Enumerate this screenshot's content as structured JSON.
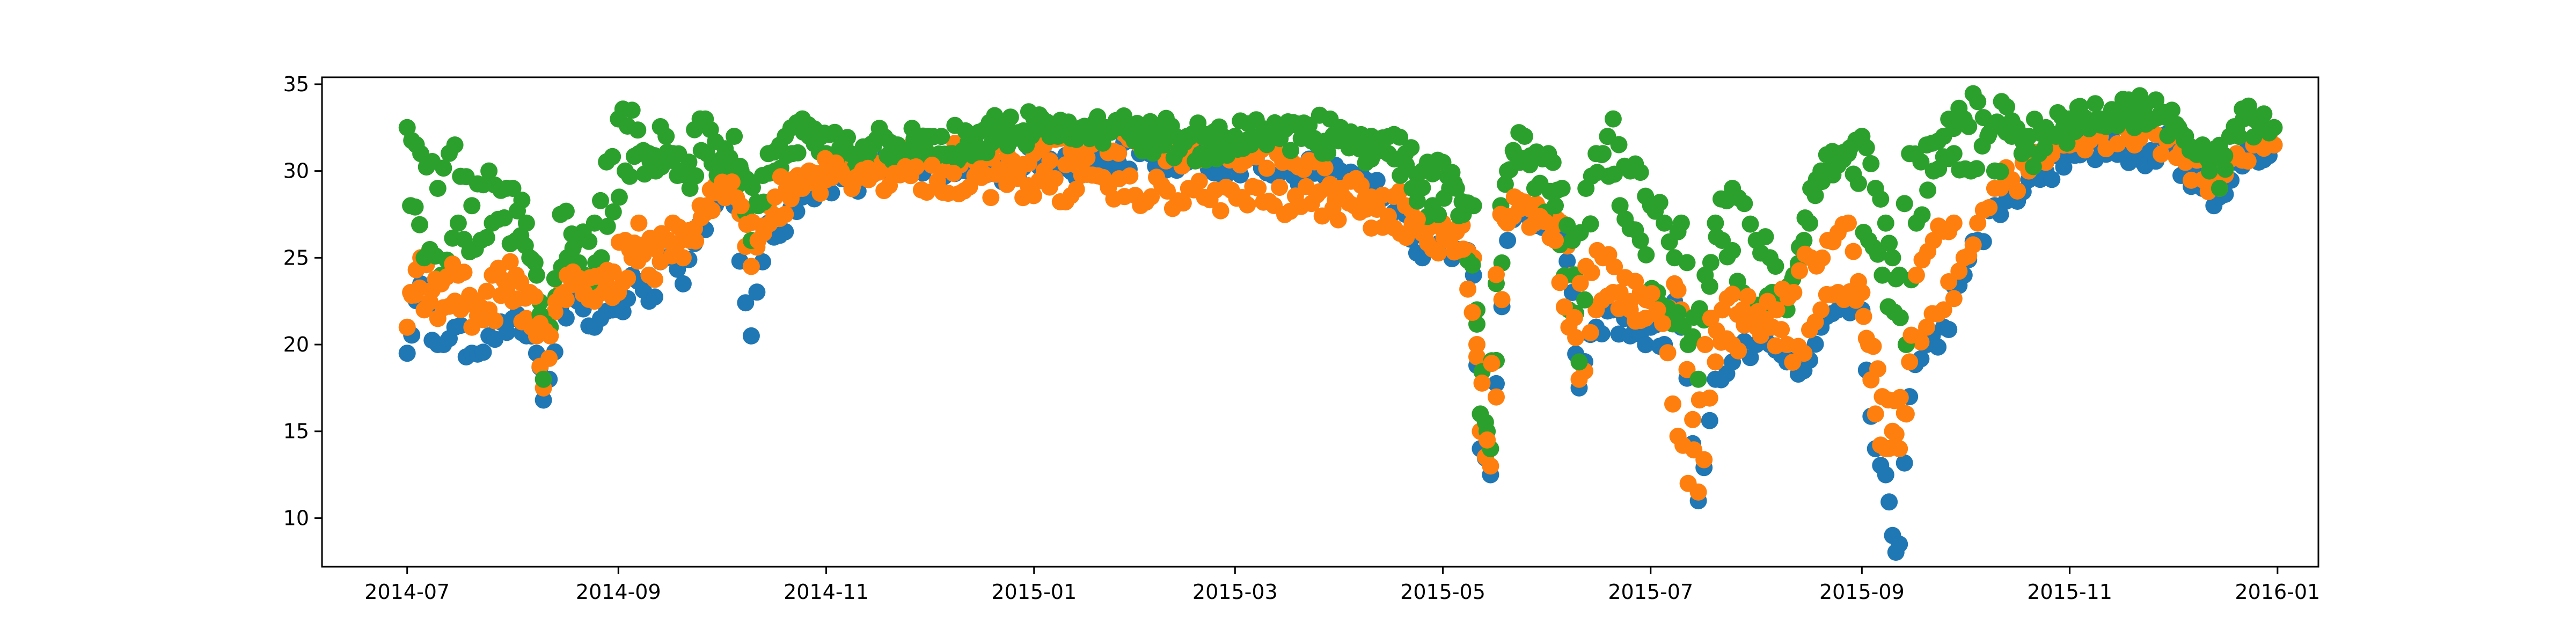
{
  "chart_data": {
    "type": "scatter",
    "title": "",
    "xlabel": "",
    "ylabel": "",
    "xlim": [
      "2014-06-06",
      "2016-01-13"
    ],
    "ylim": [
      7.2,
      35.4
    ],
    "grid": false,
    "x_ticks": [
      "2014-07-01",
      "2014-09-01",
      "2014-11-01",
      "2015-01-01",
      "2015-03-01",
      "2015-05-01",
      "2015-07-01",
      "2015-09-01",
      "2015-11-01",
      "2016-01-01"
    ],
    "x_tick_labels": [
      "2014-07",
      "2014-09",
      "2014-11",
      "2015-01",
      "2015-03",
      "2015-05",
      "2015-07",
      "2015-09",
      "2015-11",
      "2016-01"
    ],
    "y_ticks": [
      10,
      15,
      20,
      25,
      30,
      35
    ],
    "y_tick_labels": [
      "10",
      "15",
      "20",
      "25",
      "30",
      "35"
    ],
    "colors": [
      "#1f77b4",
      "#ff7f0e",
      "#2ca02c"
    ],
    "series": [
      {
        "color": "#1f77b4",
        "x": [
          "2014-07-01",
          "2014-07-05",
          "2014-07-10",
          "2014-07-15",
          "2014-07-20",
          "2014-07-25",
          "2014-08-01",
          "2014-08-05",
          "2014-08-08",
          "2014-08-10",
          "2014-08-15",
          "2014-08-20",
          "2014-08-25",
          "2014-09-01",
          "2014-09-05",
          "2014-09-10",
          "2014-09-15",
          "2014-09-20",
          "2014-09-25",
          "2014-10-01",
          "2014-10-05",
          "2014-10-10",
          "2014-10-15",
          "2014-10-20",
          "2014-10-25",
          "2014-11-01",
          "2014-11-15",
          "2014-12-01",
          "2014-12-15",
          "2015-01-01",
          "2015-01-15",
          "2015-02-01",
          "2015-02-15",
          "2015-03-01",
          "2015-03-15",
          "2015-04-01",
          "2015-04-10",
          "2015-04-20",
          "2015-04-25",
          "2015-05-01",
          "2015-05-05",
          "2015-05-10",
          "2015-05-12",
          "2015-05-15",
          "2015-05-20",
          "2015-05-25",
          "2015-06-01",
          "2015-06-05",
          "2015-06-08",
          "2015-06-10",
          "2015-06-15",
          "2015-06-20",
          "2015-06-25",
          "2015-07-01",
          "2015-07-05",
          "2015-07-08",
          "2015-07-10",
          "2015-07-15",
          "2015-07-20",
          "2015-07-25",
          "2015-08-01",
          "2015-08-05",
          "2015-08-10",
          "2015-08-15",
          "2015-08-20",
          "2015-08-25",
          "2015-09-01",
          "2015-09-05",
          "2015-09-08",
          "2015-09-10",
          "2015-09-12",
          "2015-09-15",
          "2015-09-20",
          "2015-09-25",
          "2015-10-01",
          "2015-10-05",
          "2015-10-10",
          "2015-10-15",
          "2015-10-20",
          "2015-10-25",
          "2015-11-01",
          "2015-11-10",
          "2015-11-20",
          "2015-12-01",
          "2015-12-05",
          "2015-12-10",
          "2015-12-15",
          "2015-12-20",
          "2015-12-25",
          "2015-12-31"
        ],
        "y": [
          19.5,
          23.5,
          20,
          21,
          19.5,
          20.5,
          21.5,
          20.5,
          19.5,
          16.8,
          22,
          22.5,
          21,
          22,
          24,
          22.5,
          25,
          23.5,
          27,
          29,
          28,
          20.5,
          27,
          26.5,
          28.5,
          29,
          30,
          30.5,
          30,
          30.5,
          30.5,
          31,
          30.5,
          30.5,
          30,
          30,
          29,
          27.5,
          25,
          26,
          25.5,
          24,
          14,
          12.5,
          26,
          27.5,
          27,
          26.5,
          23,
          17.5,
          21,
          22,
          20.5,
          21,
          20,
          22.5,
          21,
          11,
          18,
          19,
          20,
          20,
          19,
          18.5,
          21,
          22,
          22,
          14,
          12.5,
          9,
          8.5,
          17,
          20,
          21,
          24,
          26,
          28,
          29,
          29.5,
          30,
          31,
          31.5,
          31,
          31.5,
          30,
          29,
          28.5,
          30.5,
          31,
          31.5
        ]
      },
      {
        "color": "#ff7f0e",
        "x": [
          "2014-07-01",
          "2014-07-05",
          "2014-07-10",
          "2014-07-15",
          "2014-07-20",
          "2014-07-25",
          "2014-08-01",
          "2014-08-05",
          "2014-08-08",
          "2014-08-10",
          "2014-08-15",
          "2014-08-20",
          "2014-08-25",
          "2014-09-01",
          "2014-09-05",
          "2014-09-10",
          "2014-09-15",
          "2014-09-20",
          "2014-09-25",
          "2014-10-01",
          "2014-10-05",
          "2014-10-10",
          "2014-10-15",
          "2014-10-20",
          "2014-10-25",
          "2014-11-01",
          "2014-11-15",
          "2014-12-01",
          "2014-12-15",
          "2015-01-01",
          "2015-01-15",
          "2015-02-01",
          "2015-02-15",
          "2015-03-01",
          "2015-03-15",
          "2015-04-01",
          "2015-04-10",
          "2015-04-20",
          "2015-04-25",
          "2015-05-01",
          "2015-05-05",
          "2015-05-10",
          "2015-05-12",
          "2015-05-15",
          "2015-05-20",
          "2015-05-25",
          "2015-06-01",
          "2015-06-05",
          "2015-06-08",
          "2015-06-10",
          "2015-06-15",
          "2015-06-20",
          "2015-06-25",
          "2015-07-01",
          "2015-07-05",
          "2015-07-08",
          "2015-07-10",
          "2015-07-15",
          "2015-07-20",
          "2015-07-25",
          "2015-08-01",
          "2015-08-05",
          "2015-08-10",
          "2015-08-15",
          "2015-08-20",
          "2015-08-25",
          "2015-09-01",
          "2015-09-05",
          "2015-09-08",
          "2015-09-10",
          "2015-09-12",
          "2015-09-15",
          "2015-09-20",
          "2015-09-25",
          "2015-10-01",
          "2015-10-05",
          "2015-10-10",
          "2015-10-15",
          "2015-10-20",
          "2015-10-25",
          "2015-11-01",
          "2015-11-10",
          "2015-11-20",
          "2015-12-01",
          "2015-12-05",
          "2015-12-10",
          "2015-12-15",
          "2015-12-20",
          "2015-12-25",
          "2015-12-31"
        ],
        "y": [
          21,
          25,
          21.5,
          22.5,
          21,
          22,
          22.5,
          21.5,
          20.5,
          17.5,
          23,
          23.5,
          22.5,
          23,
          25,
          24,
          26,
          25,
          28,
          29.5,
          29,
          24.5,
          28,
          27.5,
          29,
          29.5,
          30.5,
          31,
          30.5,
          31,
          31,
          31.5,
          31,
          31,
          30.5,
          29,
          28.5,
          28,
          26.5,
          27,
          26.5,
          25,
          15,
          13,
          27,
          28,
          27.5,
          27,
          24,
          18,
          22,
          23,
          22,
          22.5,
          21.5,
          23.5,
          22,
          11.5,
          19,
          20,
          21,
          21,
          20,
          19.5,
          22,
          23,
          23,
          16,
          14,
          15,
          14,
          19,
          21,
          22,
          25,
          27,
          29,
          29.5,
          30,
          30.5,
          31.5,
          32,
          31.5,
          32,
          30.5,
          29.5,
          29,
          31,
          31.5,
          31.5
        ]
      },
      {
        "color": "#2ca02c",
        "x": [
          "2014-07-01",
          "2014-07-05",
          "2014-07-10",
          "2014-07-15",
          "2014-07-20",
          "2014-07-25",
          "2014-08-01",
          "2014-08-05",
          "2014-08-08",
          "2014-08-10",
          "2014-08-15",
          "2014-08-20",
          "2014-08-25",
          "2014-09-01",
          "2014-09-05",
          "2014-09-10",
          "2014-09-15",
          "2014-09-20",
          "2014-09-25",
          "2014-10-01",
          "2014-10-05",
          "2014-10-10",
          "2014-10-15",
          "2014-10-20",
          "2014-10-25",
          "2014-11-01",
          "2014-11-15",
          "2014-12-01",
          "2014-12-15",
          "2015-01-01",
          "2015-01-15",
          "2015-02-01",
          "2015-02-15",
          "2015-03-01",
          "2015-03-15",
          "2015-04-01",
          "2015-04-10",
          "2015-04-20",
          "2015-04-25",
          "2015-05-01",
          "2015-05-05",
          "2015-05-10",
          "2015-05-12",
          "2015-05-15",
          "2015-05-20",
          "2015-05-25",
          "2015-06-01",
          "2015-06-05",
          "2015-06-08",
          "2015-06-10",
          "2015-06-15",
          "2015-06-20",
          "2015-06-25",
          "2015-07-01",
          "2015-07-05",
          "2015-07-08",
          "2015-07-10",
          "2015-07-15",
          "2015-07-20",
          "2015-07-25",
          "2015-08-01",
          "2015-08-05",
          "2015-08-10",
          "2015-08-15",
          "2015-08-20",
          "2015-08-25",
          "2015-09-01",
          "2015-09-05",
          "2015-09-08",
          "2015-09-10",
          "2015-09-12",
          "2015-09-15",
          "2015-09-20",
          "2015-09-25",
          "2015-10-01",
          "2015-10-05",
          "2015-10-10",
          "2015-10-15",
          "2015-10-20",
          "2015-10-25",
          "2015-11-01",
          "2015-11-10",
          "2015-11-20",
          "2015-12-01",
          "2015-12-05",
          "2015-12-10",
          "2015-12-15",
          "2015-12-20",
          "2015-12-25",
          "2015-12-31"
        ],
        "y": [
          32.5,
          31,
          29,
          31.5,
          28,
          30,
          29,
          27,
          24,
          18,
          27.5,
          26,
          27,
          33,
          33.5,
          31,
          32,
          30,
          33,
          30.5,
          32,
          26,
          31,
          32,
          33,
          31,
          31.5,
          32,
          31.5,
          33,
          32.5,
          32.5,
          32,
          32,
          32.5,
          32.5,
          32,
          31,
          30,
          30.5,
          29,
          28,
          16,
          14,
          30,
          32,
          31,
          29,
          26,
          19,
          31,
          33,
          30,
          28,
          27,
          25,
          27,
          18,
          27,
          29,
          26,
          25,
          22,
          26,
          30,
          31,
          32,
          29,
          27,
          25,
          24,
          31,
          31.5,
          32,
          33,
          34,
          30,
          32,
          32,
          32.5,
          33,
          33,
          33.5,
          33.5,
          32,
          31.5,
          29,
          32.5,
          33,
          32.5
        ]
      },
      {
        "color": "#2ca02c",
        "x": [
          "2014-07-02",
          "2014-07-06",
          "2014-07-11",
          "2014-07-16",
          "2014-07-21",
          "2014-07-26",
          "2014-08-02",
          "2014-08-06",
          "2014-08-12",
          "2014-08-17",
          "2014-08-22",
          "2014-08-27",
          "2014-09-03",
          "2014-09-07",
          "2014-09-12",
          "2014-09-17",
          "2014-09-22",
          "2014-09-27",
          "2014-10-03",
          "2014-10-07",
          "2014-10-12",
          "2014-10-17",
          "2014-10-22",
          "2014-10-27",
          "2014-11-08",
          "2014-11-22",
          "2014-12-08",
          "2014-12-22",
          "2015-01-08",
          "2015-01-22",
          "2015-02-08",
          "2015-02-22",
          "2015-03-08",
          "2015-03-22",
          "2015-04-05",
          "2015-04-15",
          "2015-04-22",
          "2015-04-28",
          "2015-05-03",
          "2015-05-07",
          "2015-05-11",
          "2015-05-14",
          "2015-05-18",
          "2015-05-22",
          "2015-05-28",
          "2015-06-03",
          "2015-06-07",
          "2015-06-12",
          "2015-06-17",
          "2015-06-22",
          "2015-06-28",
          "2015-07-03",
          "2015-07-12",
          "2015-07-17",
          "2015-07-22",
          "2015-07-28",
          "2015-08-03",
          "2015-08-07",
          "2015-08-12",
          "2015-08-17",
          "2015-08-22",
          "2015-08-28",
          "2015-09-03",
          "2015-09-07",
          "2015-09-14",
          "2015-09-17",
          "2015-09-22",
          "2015-09-28",
          "2015-10-03",
          "2015-10-08",
          "2015-10-12",
          "2015-10-18",
          "2015-10-23",
          "2015-10-28",
          "2015-11-05",
          "2015-11-15",
          "2015-11-25",
          "2015-12-03",
          "2015-12-08",
          "2015-12-12",
          "2015-12-18",
          "2015-12-22",
          "2015-12-28"
        ],
        "y": [
          28,
          25,
          24,
          27,
          25.5,
          27,
          26,
          25,
          21,
          25,
          24,
          25,
          30,
          31,
          30,
          31,
          29,
          31,
          30,
          30,
          28,
          30,
          31,
          32,
          31,
          31.5,
          31,
          32.5,
          32,
          32.5,
          31.5,
          31.5,
          32,
          32,
          31.5,
          31,
          29,
          28,
          29,
          27.5,
          22,
          15,
          28,
          31,
          29,
          28,
          22,
          29,
          31,
          28,
          26,
          23,
          20,
          24,
          26,
          23,
          22,
          23,
          24,
          29,
          30,
          31,
          26,
          24,
          20,
          27,
          30,
          31,
          30,
          32,
          34,
          31,
          31,
          32,
          33,
          33.5,
          33,
          32.5,
          31,
          30,
          32,
          33,
          32.5
        ]
      },
      {
        "color": "#ff7f0e",
        "x": [
          "2014-07-02",
          "2014-07-06",
          "2014-07-11",
          "2014-07-16",
          "2014-07-21",
          "2014-07-26",
          "2014-08-02",
          "2014-08-06",
          "2014-08-12",
          "2014-08-17",
          "2014-08-22",
          "2014-08-27",
          "2014-09-03",
          "2014-09-07",
          "2014-09-12",
          "2014-09-17",
          "2014-09-22",
          "2014-09-27",
          "2014-10-03",
          "2014-10-07",
          "2014-10-12",
          "2014-10-17",
          "2014-10-22",
          "2014-10-27",
          "2015-04-05",
          "2015-04-15",
          "2015-04-22",
          "2015-04-28",
          "2015-05-03",
          "2015-05-07",
          "2015-05-11",
          "2015-05-14",
          "2015-05-18",
          "2015-05-22",
          "2015-05-28",
          "2015-06-03",
          "2015-06-07",
          "2015-06-12",
          "2015-06-17",
          "2015-06-22",
          "2015-06-28",
          "2015-07-03",
          "2015-07-12",
          "2015-07-17",
          "2015-07-22",
          "2015-07-28",
          "2015-08-03",
          "2015-08-07",
          "2015-08-12",
          "2015-08-17",
          "2015-08-22",
          "2015-08-28",
          "2015-09-03",
          "2015-09-07",
          "2015-09-14",
          "2015-09-17",
          "2015-09-22",
          "2015-09-28"
        ],
        "y": [
          23,
          22,
          23.5,
          24,
          22.5,
          24,
          24,
          23,
          20.5,
          24,
          23,
          24,
          26,
          27,
          25.5,
          27,
          26,
          28,
          29,
          28,
          26,
          28.5,
          29.5,
          30,
          28,
          27,
          27,
          25.5,
          26,
          25.5,
          20,
          14.5,
          27.5,
          28.5,
          27,
          26,
          21,
          24.5,
          25,
          23,
          23,
          22,
          12,
          20,
          22,
          22,
          21.5,
          22,
          23,
          25,
          26,
          27,
          20,
          17,
          16,
          24,
          26,
          27
        ]
      }
    ]
  }
}
